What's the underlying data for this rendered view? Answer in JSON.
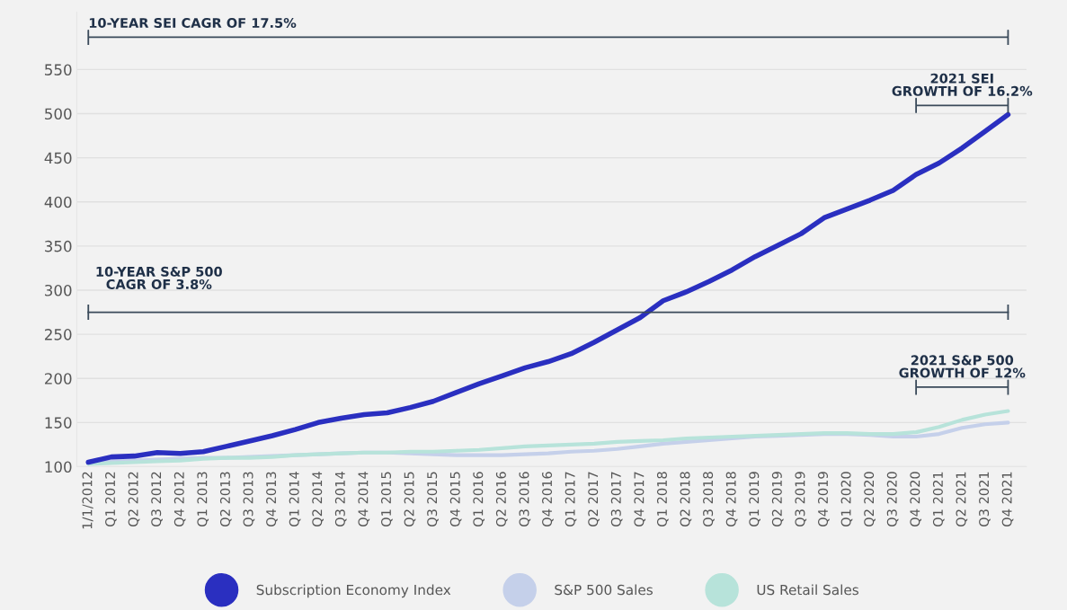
{
  "chart_data": {
    "type": "line",
    "categories": [
      "1/1/2012",
      "Q1 2012",
      "Q2 2012",
      "Q3 2012",
      "Q4 2012",
      "Q1 2013",
      "Q2 2013",
      "Q3 2013",
      "Q4 2013",
      "Q1 2014",
      "Q2 2014",
      "Q3 2014",
      "Q4 2014",
      "Q1 2015",
      "Q2 2015",
      "Q3 2015",
      "Q4 2015",
      "Q1 2016",
      "Q2 2016",
      "Q3 2016",
      "Q4 2016",
      "Q1 2017",
      "Q2 2017",
      "Q3 2017",
      "Q4 2017",
      "Q1 2018",
      "Q2 2018",
      "Q3 2018",
      "Q4 2018",
      "Q1 2019",
      "Q2 2019",
      "Q3 2019",
      "Q4 2019",
      "Q1 2020",
      "Q2 2020",
      "Q3 2020",
      "Q4 2020",
      "Q1 2021",
      "Q2 2021",
      "Q3 2021",
      "Q4 2021"
    ],
    "series": [
      {
        "name": "S&P 500 Sales",
        "color": "#c5d0ea",
        "values": [
          105,
          106,
          107,
          108,
          109,
          110,
          110,
          111,
          112,
          113,
          114,
          115,
          116,
          116,
          115,
          114,
          113,
          113,
          113,
          114,
          115,
          117,
          118,
          120,
          123,
          126,
          128,
          130,
          132,
          134,
          135,
          136,
          137,
          137,
          136,
          134,
          134,
          137,
          144,
          148,
          150
        ]
      },
      {
        "name": "US Retail Sales",
        "color": "#b7e3da",
        "values": [
          103,
          104,
          105,
          106,
          107,
          109,
          110,
          110,
          111,
          113,
          114,
          115,
          116,
          116,
          117,
          117,
          118,
          119,
          121,
          123,
          124,
          125,
          126,
          128,
          129,
          130,
          132,
          133,
          134,
          135,
          136,
          137,
          138,
          138,
          137,
          137,
          139,
          145,
          153,
          159,
          163
        ]
      },
      {
        "name": "Subscription Economy Index",
        "color": "#2a2fc0",
        "values": [
          105,
          111,
          112,
          116,
          115,
          117,
          123,
          129,
          135,
          142,
          150,
          155,
          159,
          161,
          167,
          174,
          184,
          194,
          203,
          212,
          219,
          228,
          241,
          255,
          269,
          288,
          298,
          310,
          323,
          338,
          351,
          364,
          382,
          392,
          402,
          413,
          431,
          444,
          461,
          480,
          499
        ]
      }
    ],
    "ylim": [
      100,
      615
    ],
    "yticks": [
      100,
      150,
      200,
      250,
      300,
      350,
      400,
      450,
      500,
      550
    ],
    "grid": "y",
    "legend": "bottom",
    "line_style": "solid",
    "marker": "none",
    "ref_lines": [
      {
        "axis": "y",
        "value": 275,
        "label": "10-YEAR S&P 500\nCAGR OF 3.8%",
        "color": "#3a4a5a",
        "line_style": "solid"
      }
    ],
    "annotations": [
      "10-YEAR SEI CAGR OF 17.5%",
      "2021 SEI\nGROWTH OF 16.2%",
      "2021 S&P 500\nGROWTH OF 12%"
    ]
  }
}
